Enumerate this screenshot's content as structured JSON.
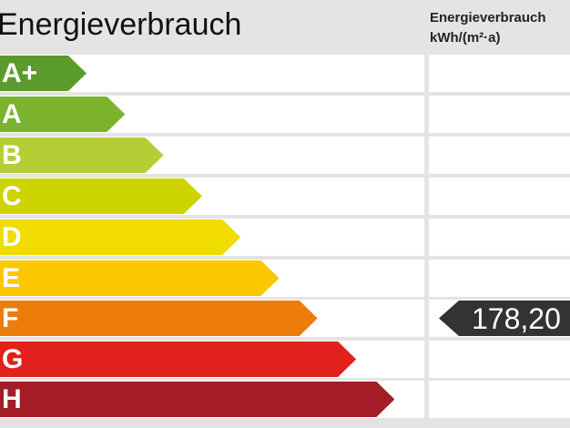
{
  "title": "Energieverbrauch",
  "subtitle_line1": "Energieverbrauch",
  "subtitle_line2": "kWh/(m²·a)",
  "classes": [
    {
      "label": "A+",
      "color": "#5b9b2b"
    },
    {
      "label": "A",
      "color": "#7bb32e"
    },
    {
      "label": "B",
      "color": "#b6cd36"
    },
    {
      "label": "C",
      "color": "#cdd400"
    },
    {
      "label": "D",
      "color": "#f0dc00"
    },
    {
      "label": "E",
      "color": "#fbc700"
    },
    {
      "label": "F",
      "color": "#ed7d0b"
    },
    {
      "label": "G",
      "color": "#e2211c"
    },
    {
      "label": "H",
      "color": "#a41c25"
    }
  ],
  "value": {
    "text": "178,20",
    "class": "F",
    "color": "#333333"
  }
}
